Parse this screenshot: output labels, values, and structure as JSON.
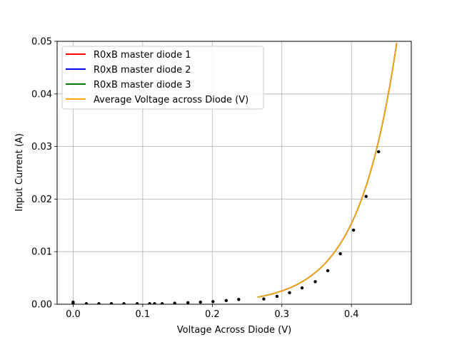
{
  "chart_data": {
    "type": "line",
    "xlabel": "Voltage Across Diode (V)",
    "ylabel": "Input Current (A)",
    "xlim": [
      -0.023,
      0.486
    ],
    "ylim": [
      0,
      0.05
    ],
    "xticks": [
      "0.0",
      "0.1",
      "0.2",
      "0.3",
      "0.4"
    ],
    "xtick_values": [
      0.0,
      0.1,
      0.2,
      0.3,
      0.4
    ],
    "yticks": [
      "0.00",
      "0.01",
      "0.02",
      "0.03",
      "0.04",
      "0.05"
    ],
    "ytick_values": [
      0.0,
      0.01,
      0.02,
      0.03,
      0.04,
      0.05
    ],
    "grid": true,
    "legend_position": "top-left",
    "fit_curve": {
      "x_start": 0.265,
      "x_end": 0.465,
      "a": 1.13e-05,
      "b": 18.04
    },
    "series": [
      {
        "name": "R0xB master diode 1",
        "color": "#ff0000"
      },
      {
        "name": "R0xB master diode 2",
        "color": "#0000ff"
      },
      {
        "name": "R0xB master diode 3",
        "color": "#008000"
      },
      {
        "name": "Average Voltage across Diode (V)",
        "color": "#ffa500"
      }
    ],
    "points": [
      {
        "x": 0.0,
        "y": 0.0004
      },
      {
        "x": 0.0,
        "y": 0.0002
      },
      {
        "x": 0.019,
        "y": 0.0001
      },
      {
        "x": 0.037,
        "y": 0.0001
      },
      {
        "x": 0.055,
        "y": 0.0001
      },
      {
        "x": 0.073,
        "y": 0.0001
      },
      {
        "x": 0.092,
        "y": 0.0001
      },
      {
        "x": 0.11,
        "y": 0.0001
      },
      {
        "x": 0.117,
        "y": 0.0001
      },
      {
        "x": 0.128,
        "y": 0.0001
      },
      {
        "x": 0.146,
        "y": 0.0002
      },
      {
        "x": 0.165,
        "y": 0.0003
      },
      {
        "x": 0.183,
        "y": 0.0004
      },
      {
        "x": 0.201,
        "y": 0.0005
      },
      {
        "x": 0.22,
        "y": 0.0007
      },
      {
        "x": 0.238,
        "y": 0.0009
      },
      {
        "x": 0.274,
        "y": 0.001
      },
      {
        "x": 0.293,
        "y": 0.0015
      },
      {
        "x": 0.311,
        "y": 0.0022
      },
      {
        "x": 0.329,
        "y": 0.0031
      },
      {
        "x": 0.348,
        "y": 0.0043
      },
      {
        "x": 0.366,
        "y": 0.0064
      },
      {
        "x": 0.384,
        "y": 0.0096
      },
      {
        "x": 0.403,
        "y": 0.0141
      },
      {
        "x": 0.421,
        "y": 0.0205
      },
      {
        "x": 0.439,
        "y": 0.029
      }
    ]
  }
}
